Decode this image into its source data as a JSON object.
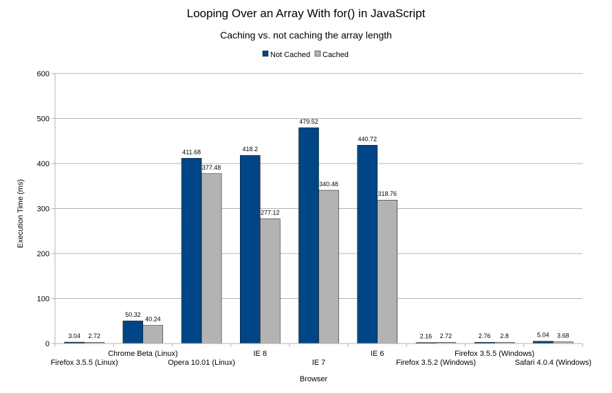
{
  "chart_data": {
    "type": "bar",
    "title": "Looping Over an Array With for() in JavaScript",
    "subtitle": "Caching vs. not caching the array length",
    "xlabel": "Browser",
    "ylabel": "Execution Time (ms)",
    "ylim": [
      0,
      600
    ],
    "yticks": [
      0,
      100,
      200,
      300,
      400,
      500,
      600
    ],
    "ytick_labels": [
      "0",
      "100",
      "200",
      "300",
      "400",
      "500",
      "600"
    ],
    "grid": true,
    "legend_position": "top-center",
    "categories": [
      "Firefox 3.5.5 (Linux)",
      "Chrome Beta (Linux)",
      "Opera 10.01 (Linux)",
      "IE 8",
      "IE 7",
      "IE 6",
      "Firefox 3.5.2 (Windows)",
      "Firefox 3.5.5 (Windows)",
      "Safari 4.0.4 (Windows)"
    ],
    "category_label_rows": [
      "lower",
      "upper",
      "lower",
      "upper",
      "lower",
      "upper",
      "lower",
      "upper",
      "lower"
    ],
    "series": [
      {
        "name": "Not Cached",
        "color": "#004586",
        "values": [
          3.04,
          50.32,
          411.68,
          418.2,
          479.52,
          440.72,
          2.16,
          2.76,
          5.04
        ],
        "value_labels": [
          "3.04",
          "50.32",
          "411.68",
          "418.2",
          "479.52",
          "440.72",
          "2.16",
          "2.76",
          "5.04"
        ]
      },
      {
        "name": "Cached",
        "color": "#b3b3b3",
        "values": [
          2.72,
          40.24,
          377.48,
          277.12,
          340.48,
          318.76,
          2.72,
          2.8,
          3.68
        ],
        "value_labels": [
          "2.72",
          "40.24",
          "377.48",
          "277.12",
          "340.48",
          "318.76",
          "2.72",
          "2.8",
          "3.68"
        ]
      }
    ]
  }
}
